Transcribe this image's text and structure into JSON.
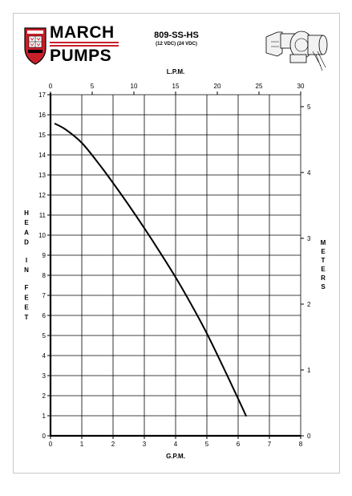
{
  "header": {
    "brand_line1": "MARCH",
    "brand_line2": "PUMPS",
    "model": "809-SS-HS",
    "voltage": "(12 VDC) (24 VDC)",
    "icons": [
      "march-pumps-shield-logo",
      "pump-product-illustration"
    ]
  },
  "colors": {
    "brand_red": "#c8202a",
    "grid": "#000000",
    "curve": "#000000"
  },
  "chart_data": {
    "type": "line",
    "title": "",
    "xlabel": "G.P.M.",
    "ylabel": "HEAD IN FEET",
    "x2label": "L.P.M.",
    "y2label": "METERS",
    "xlim": [
      0,
      8
    ],
    "ylim": [
      0,
      17
    ],
    "x2lim": [
      0,
      30
    ],
    "y2lim": [
      0,
      5.1816
    ],
    "x_ticks": [
      "0",
      "1",
      "2",
      "3",
      "4",
      "5",
      "6",
      "7",
      "8"
    ],
    "y_ticks": [
      "0",
      "1",
      "2",
      "3",
      "4",
      "5",
      "6",
      "7",
      "8",
      "9",
      "10",
      "11",
      "12",
      "13",
      "14",
      "15",
      "16",
      "17"
    ],
    "x2_ticks": [
      "0",
      "5",
      "10",
      "15",
      "20",
      "25",
      "30"
    ],
    "y2_ticks": [
      "0",
      "1",
      "2",
      "3",
      "4",
      "5"
    ],
    "grid": true,
    "legend": "none",
    "series": [
      {
        "x": [
          0.15,
          0.5,
          1.0,
          1.5,
          2.0,
          2.5,
          3.0,
          3.5,
          4.0,
          4.5,
          5.0,
          5.5,
          6.0,
          6.25
        ],
        "y": [
          15.55,
          15.25,
          14.6,
          13.65,
          12.6,
          11.5,
          10.35,
          9.15,
          7.9,
          6.55,
          5.1,
          3.5,
          1.85,
          1.0
        ]
      }
    ]
  }
}
